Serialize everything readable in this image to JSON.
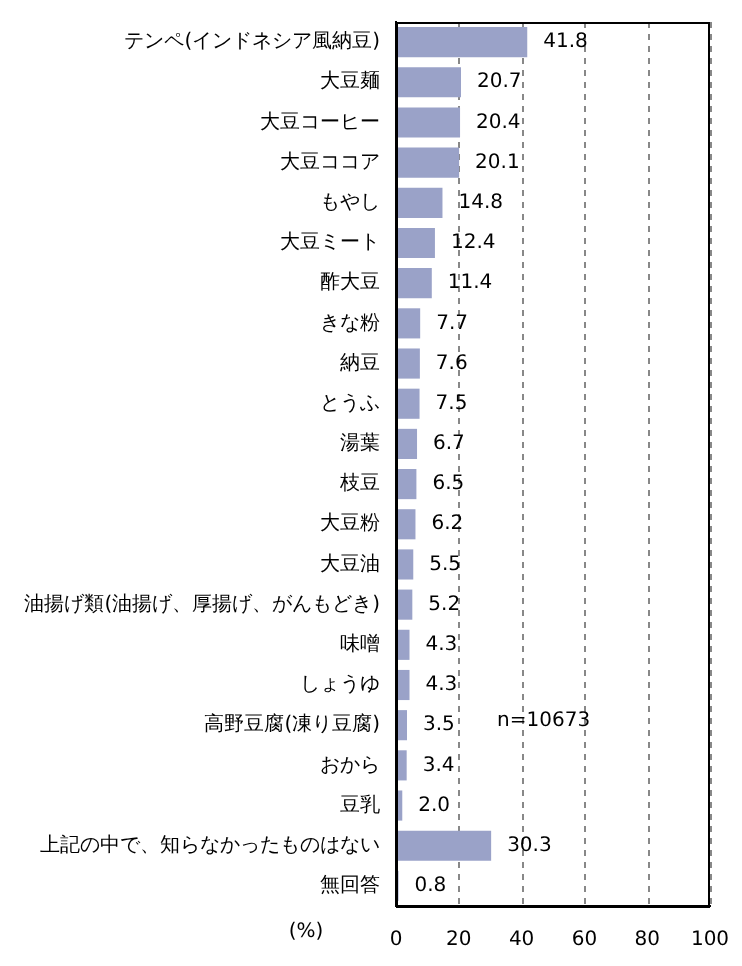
{
  "chart_data": {
    "type": "bar",
    "orientation": "horizontal",
    "xlabel": "(%)",
    "categories": [
      "テンペ(インドネシア風納豆)",
      "大豆麺",
      "大豆コーヒー",
      "大豆ココア",
      "もやし",
      "大豆ミート",
      "酢大豆",
      "きな粉",
      "納豆",
      "とうふ",
      "湯葉",
      "枝豆",
      "大豆粉",
      "大豆油",
      "油揚げ類(油揚げ、厚揚げ、がんもどき)",
      "味噌",
      "しょうゆ",
      "高野豆腐(凍り豆腐)",
      "おから",
      "豆乳",
      "上記の中で、知らなかったものはない",
      "無回答"
    ],
    "values": [
      41.8,
      20.7,
      20.4,
      20.1,
      14.8,
      12.4,
      11.4,
      7.7,
      7.6,
      7.5,
      6.7,
      6.5,
      6.2,
      5.5,
      5.2,
      4.3,
      4.3,
      3.5,
      3.4,
      2.0,
      30.3,
      0.8
    ],
    "value_labels": [
      "41.8",
      "20.7",
      "20.4",
      "20.1",
      "14.8",
      "12.4",
      "11.4",
      "7.7",
      "7.6",
      "7.5",
      "6.7",
      "6.5",
      "6.2",
      "5.5",
      "5.2",
      "4.3",
      "4.3",
      "3.5",
      "3.4",
      "2.0",
      "30.3",
      "0.8"
    ],
    "color": "#9aa2c8",
    "xlim": [
      0,
      100
    ],
    "xticks": [
      0,
      20,
      40,
      60,
      80,
      100
    ],
    "grid": "x",
    "line_style": "dashed",
    "legend": false,
    "annotations": [
      "n=10673"
    ]
  }
}
